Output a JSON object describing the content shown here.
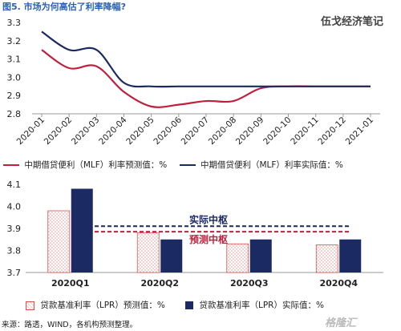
{
  "header": {
    "figure_title": "图5. 市场为何高估了利率降幅?",
    "brand": "伍戈经济笔记"
  },
  "chart_data": [
    {
      "type": "line",
      "x": [
        "2020-01",
        "2020-02",
        "2020-03",
        "2020-04",
        "2020-05",
        "2020-06",
        "2020-07",
        "2020-08",
        "2020-09",
        "2020-10",
        "2020-11",
        "2020-12",
        "2021-01"
      ],
      "series": [
        {
          "name": "中期借贷便利（MLF）利率预测值：%",
          "color": "#c0203c",
          "values": [
            3.15,
            3.05,
            3.06,
            2.92,
            2.84,
            2.85,
            2.87,
            2.87,
            2.94,
            2.95,
            2.95,
            2.95,
            2.95
          ]
        },
        {
          "name": "中期借贷便利（MLF）利率实际值：%",
          "color": "#1c2a64",
          "values": [
            3.25,
            3.15,
            3.15,
            2.97,
            2.95,
            2.95,
            2.95,
            2.95,
            2.95,
            2.95,
            2.95,
            2.95,
            2.95
          ]
        }
      ],
      "ylim": [
        2.8,
        3.3
      ],
      "yticks": [
        "3.3",
        "3.2",
        "3.1",
        "3.0",
        "2.9",
        "2.8"
      ],
      "grid": false
    },
    {
      "type": "bar",
      "categories": [
        "2020Q1",
        "2020Q2",
        "2020Q3",
        "2020Q4"
      ],
      "series": [
        {
          "name": "贷款基准利率（LPR）预测值：%",
          "color": "#d9504a",
          "pattern": "dotted",
          "values": [
            3.98,
            3.88,
            3.83,
            3.825
          ]
        },
        {
          "name": "贷款基准利率（LPR）实际值：%",
          "color": "#1c2a64",
          "values": [
            4.08,
            3.85,
            3.85,
            3.85
          ]
        }
      ],
      "ylim": [
        3.7,
        4.1
      ],
      "yticks": [
        "4.1",
        "4.0",
        "3.9",
        "3.8",
        "3.7"
      ],
      "reference_lines": [
        {
          "label": "实际中枢",
          "value": 3.91,
          "color": "#1c2a64"
        },
        {
          "label": "预测中枢",
          "value": 3.885,
          "color": "#c0203c"
        }
      ]
    }
  ],
  "footer": {
    "source": "来源：路透，WIND，各机构预测整理。",
    "watermark": "格隆汇"
  }
}
